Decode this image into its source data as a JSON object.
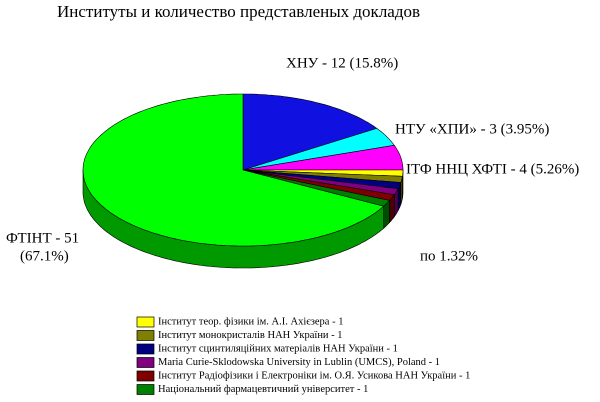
{
  "chart_data": {
    "type": "pie3d",
    "title": "Институты и количество представленых докладов",
    "categories": [
      null,
      null,
      null,
      "Інститут теор. фізики ім. А.І. Ахієзера - 1",
      "Інститут монокристалів НАН України - 1",
      "Інститут сцинтиляційних матеріалів НАН України - 1",
      "Maria Curie-Sklodowska University in Lublin  (UMCS), Poland - 1",
      "Інститут Радіофізики і Електроніки ім. О.Я. Усикова НАН України - 1",
      "Національний фармацевтичний університет - 1",
      null
    ],
    "values": [
      12,
      3,
      4,
      1,
      1,
      1,
      1,
      1,
      1,
      51
    ],
    "colors": [
      "#1010e0",
      "#00ffff",
      "#ff00ff",
      "#ffff00",
      "#808000",
      "#000080",
      "#800080",
      "#800000",
      "#008000",
      "#00ff00"
    ],
    "annotations": [
      "ХНУ - 12  (15.8%)",
      "НТУ «ХПИ» - 3  (3.95%)",
      "ІТФ ННЦ ХФТІ - 4 (5.26%)",
      "ФТІНТ - 51",
      "(67.1%)",
      "по 1.32%"
    ]
  }
}
